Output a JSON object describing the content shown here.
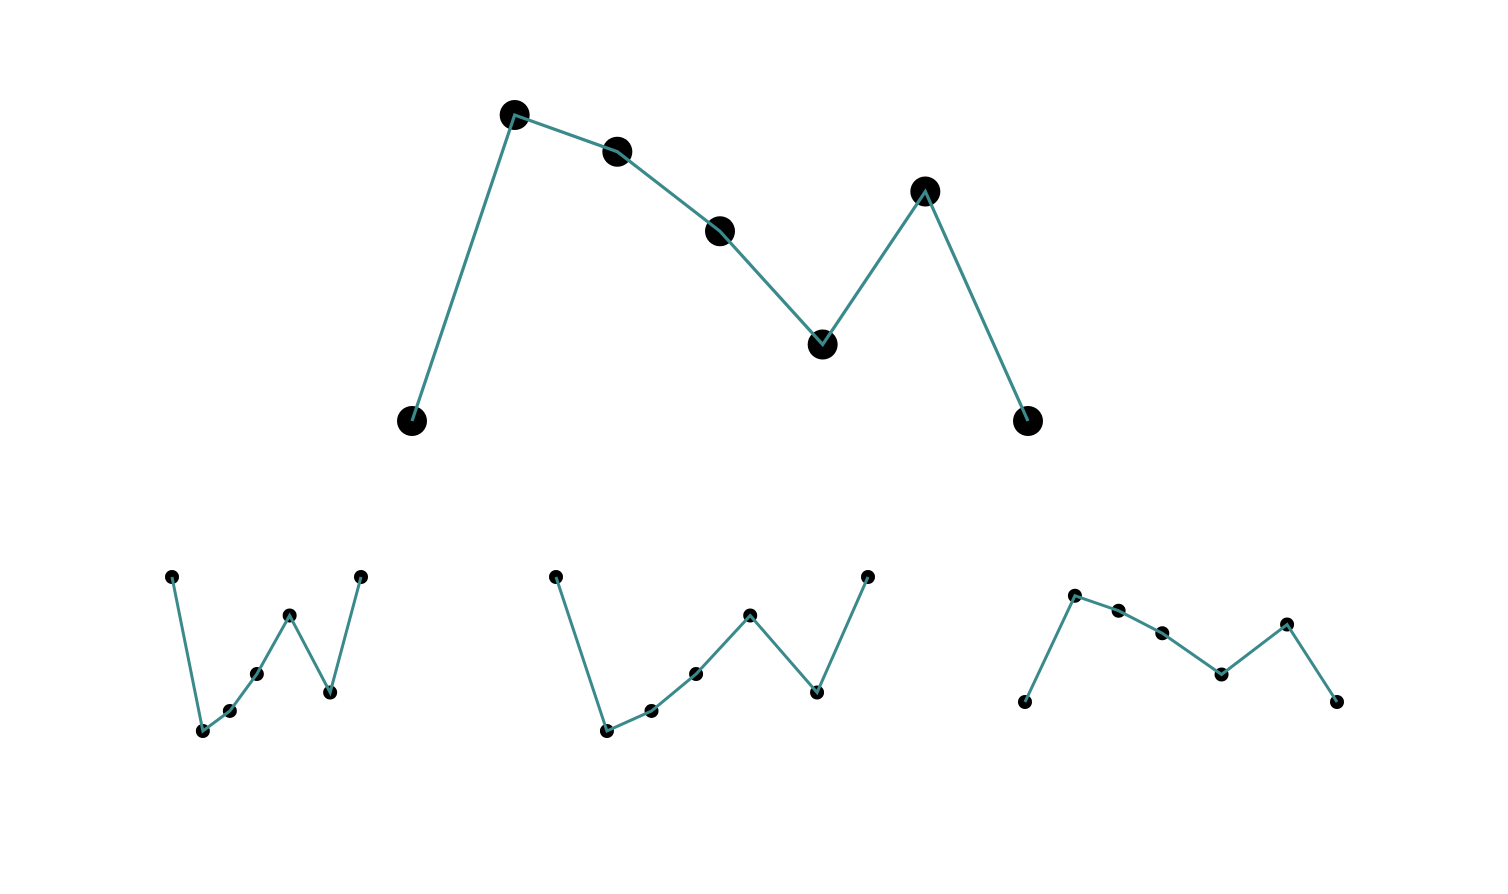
{
  "chart_data": [
    {
      "type": "line",
      "title": "",
      "xlabel": "",
      "ylabel": "",
      "axes_visible": false,
      "grid": false,
      "line_color": "#3a8a8c",
      "marker_color": "#000000",
      "x": [
        1,
        2,
        3,
        4,
        5,
        6,
        7
      ],
      "series": [
        {
          "values": [
            0.0,
            1.0,
            0.88,
            0.62,
            0.25,
            0.75,
            0.0
          ]
        }
      ]
    },
    {
      "type": "line",
      "title": "",
      "xlabel": "",
      "ylabel": "",
      "axes_visible": false,
      "grid": false,
      "line_color": "#3a8a8c",
      "marker_color": "#000000",
      "x": [
        0,
        1.6,
        3,
        4.4,
        6.1,
        8.2,
        9.8
      ],
      "series": [
        {
          "values": [
            1.0,
            0.0,
            0.13,
            0.37,
            0.75,
            0.25,
            1.0
          ]
        }
      ]
    },
    {
      "type": "line",
      "title": "",
      "xlabel": "",
      "ylabel": "",
      "axes_visible": false,
      "grid": false,
      "line_color": "#3a8a8c",
      "marker_color": "#000000",
      "x": [
        0,
        1.6,
        3,
        4.4,
        6.1,
        8.2,
        9.8
      ],
      "series": [
        {
          "values": [
            1.0,
            0.0,
            0.13,
            0.37,
            0.75,
            0.25,
            1.0
          ]
        }
      ]
    },
    {
      "type": "line",
      "title": "",
      "xlabel": "",
      "ylabel": "",
      "axes_visible": false,
      "grid": false,
      "line_color": "#3a8a8c",
      "marker_color": "#000000",
      "x": [
        0,
        1.6,
        3,
        4.4,
        6.3,
        8.4,
        10
      ],
      "series": [
        {
          "values": [
            0.0,
            0.85,
            0.73,
            0.55,
            0.22,
            0.62,
            0.0
          ]
        }
      ]
    }
  ]
}
